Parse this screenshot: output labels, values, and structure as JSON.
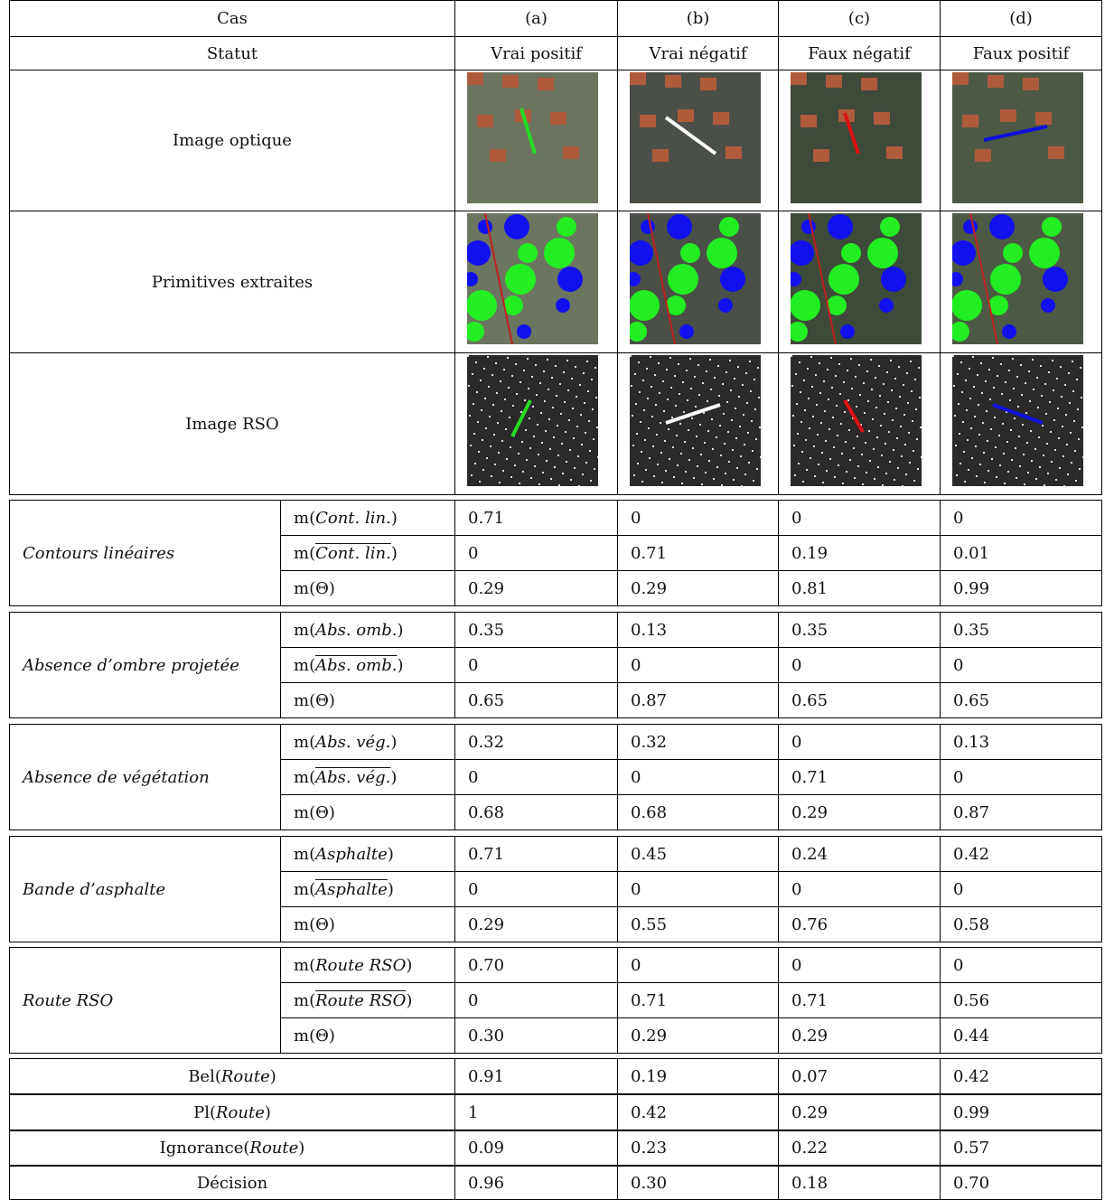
{
  "header": {
    "rows": [
      [
        "Cas",
        "(a)",
        "(b)",
        "(c)",
        "(d)"
      ],
      [
        "Statut",
        "Vrai positif",
        "Vrai négatif",
        "Faux négatif",
        "Faux positif"
      ]
    ]
  },
  "image_rows": [
    "Image optique",
    "Primitives extraites",
    "Image RSO"
  ],
  "criteria": [
    {
      "name": "Contours linéaires",
      "rows": [
        {
          "label": {
            "before": "m(",
            "term": "Cont. lin.",
            "after": ")",
            "negated": false
          },
          "values": [
            "0.71",
            "0",
            "0",
            "0"
          ]
        },
        {
          "label": {
            "before": "m(",
            "term": "Cont. lin.",
            "after": ")",
            "negated": true
          },
          "values": [
            "0",
            "0.71",
            "0.19",
            "0.01"
          ]
        },
        {
          "label": {
            "before": "m(Θ)"
          },
          "values": [
            "0.29",
            "0.29",
            "0.81",
            "0.99"
          ]
        }
      ]
    },
    {
      "name": "Absence d’ombre projetée",
      "rows": [
        {
          "label": {
            "before": "m(",
            "term": "Abs. omb.",
            "after": ")",
            "negated": false
          },
          "values": [
            "0.35",
            "0.13",
            "0.35",
            "0.35"
          ]
        },
        {
          "label": {
            "before": "m(",
            "term": "Abs. omb.",
            "after": ")",
            "negated": true
          },
          "values": [
            "0",
            "0",
            "0",
            "0"
          ]
        },
        {
          "label": {
            "before": "m(Θ)"
          },
          "values": [
            "0.65",
            "0.87",
            "0.65",
            "0.65"
          ]
        }
      ]
    },
    {
      "name": "Absence de végétation",
      "rows": [
        {
          "label": {
            "before": "m(",
            "term": "Abs. vég.",
            "after": ")",
            "negated": false
          },
          "values": [
            "0.32",
            "0.32",
            "0",
            "0.13"
          ]
        },
        {
          "label": {
            "before": "m(",
            "term": "Abs. vég.",
            "after": ")",
            "negated": true
          },
          "values": [
            "0",
            "0",
            "0.71",
            "0"
          ]
        },
        {
          "label": {
            "before": "m(Θ)"
          },
          "values": [
            "0.68",
            "0.68",
            "0.29",
            "0.87"
          ]
        }
      ]
    },
    {
      "name": "Bande d’asphalte",
      "rows": [
        {
          "label": {
            "before": "m(",
            "term": "Asphalte",
            "after": ")",
            "negated": false
          },
          "values": [
            "0.71",
            "0.45",
            "0.24",
            "0.42"
          ]
        },
        {
          "label": {
            "before": "m(",
            "term": "Asphalte",
            "after": ")",
            "negated": true
          },
          "values": [
            "0",
            "0",
            "0",
            "0"
          ]
        },
        {
          "label": {
            "before": "m(Θ)"
          },
          "values": [
            "0.29",
            "0.55",
            "0.76",
            "0.58"
          ]
        }
      ]
    },
    {
      "name": "Route RSO",
      "rows": [
        {
          "label": {
            "before": "m(",
            "term": "Route RSO",
            "after": ")",
            "negated": false
          },
          "values": [
            "0.70",
            "0",
            "0",
            "0"
          ]
        },
        {
          "label": {
            "before": "m(",
            "term": "Route RSO",
            "after": ")",
            "negated": true
          },
          "values": [
            "0",
            "0.71",
            "0.71",
            "0.56"
          ]
        },
        {
          "label": {
            "before": "m(Θ)"
          },
          "values": [
            "0.30",
            "0.29",
            "0.29",
            "0.44"
          ]
        }
      ]
    }
  ],
  "results": [
    {
      "label": {
        "before": "Bel(",
        "term": "Route",
        "after": ")"
      },
      "values": [
        "0.91",
        "0.19",
        "0.07",
        "0.42"
      ]
    },
    {
      "label": {
        "before": "Pl(",
        "term": "Route",
        "after": ")"
      },
      "values": [
        "1",
        "0.42",
        "0.29",
        "0.99"
      ]
    },
    {
      "label": {
        "before": "Ignorance(",
        "term": "Route",
        "after": ")"
      },
      "values": [
        "0.09",
        "0.23",
        "0.22",
        "0.57"
      ]
    },
    {
      "label": {
        "before": "Décision"
      },
      "values": [
        "0.96",
        "0.30",
        "0.18",
        "0.70"
      ]
    }
  ]
}
